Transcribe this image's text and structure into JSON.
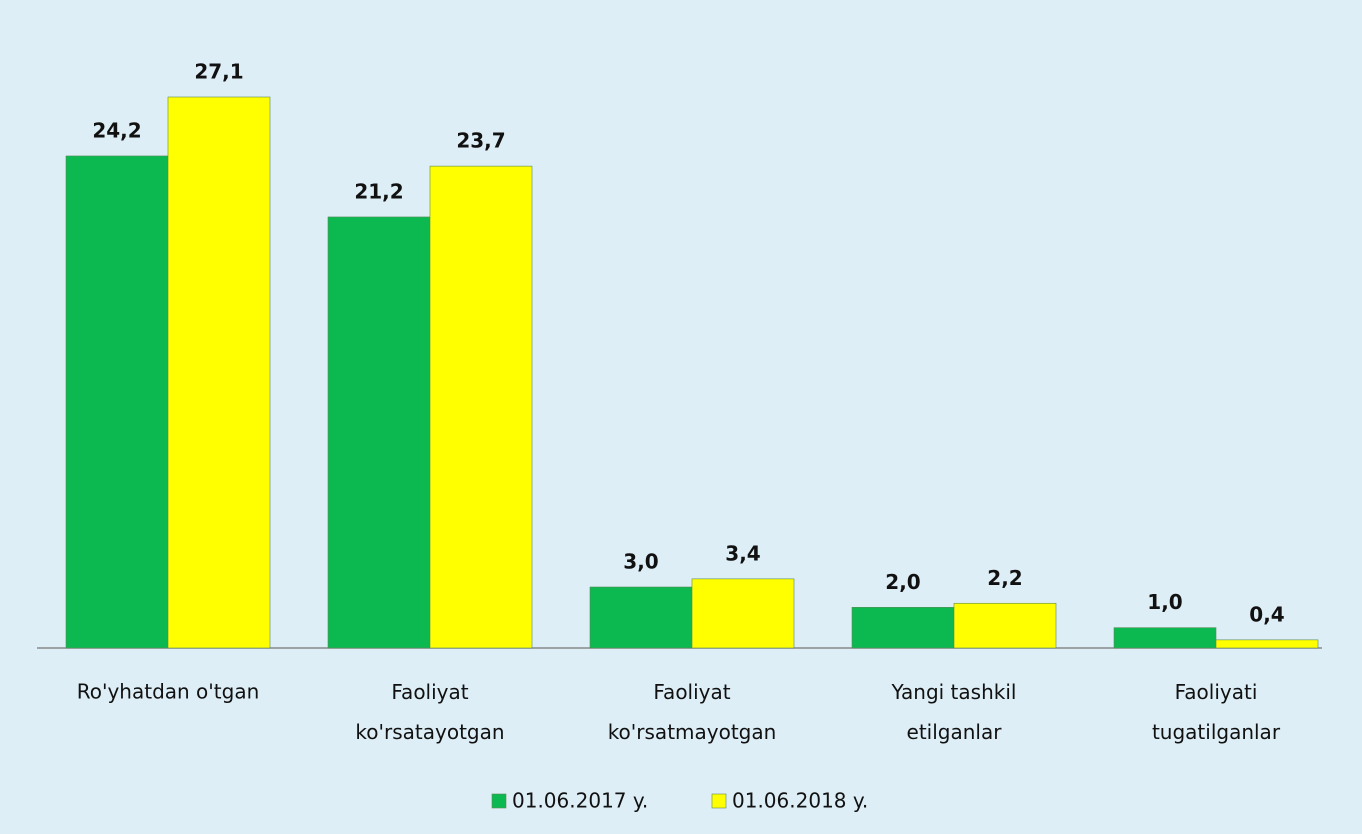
{
  "chart_data": {
    "type": "bar",
    "categories": [
      "Ro'yhatdan o'tgan",
      "Faoliyat\nko'rsatayotgan",
      "Faoliyat\nko'rsatmayotgan",
      "Yangi tashkil\netilganlar",
      "Faoliyati\ntugatilganlar"
    ],
    "series": [
      {
        "name": "01.06.2017 y.",
        "color": "#0cb850",
        "values": [
          24.2,
          21.2,
          3.0,
          2.0,
          1.0
        ],
        "value_labels": [
          "24,2",
          "21,2",
          "3,0",
          "2,0",
          "1,0"
        ]
      },
      {
        "name": "01.06.2018 y.",
        "color": "#ffff00",
        "values": [
          27.1,
          23.7,
          3.4,
          2.2,
          0.4
        ],
        "value_labels": [
          "27,1",
          "23,7",
          "3,4",
          "2,2",
          "0,4"
        ]
      }
    ],
    "legend": "bottom"
  }
}
